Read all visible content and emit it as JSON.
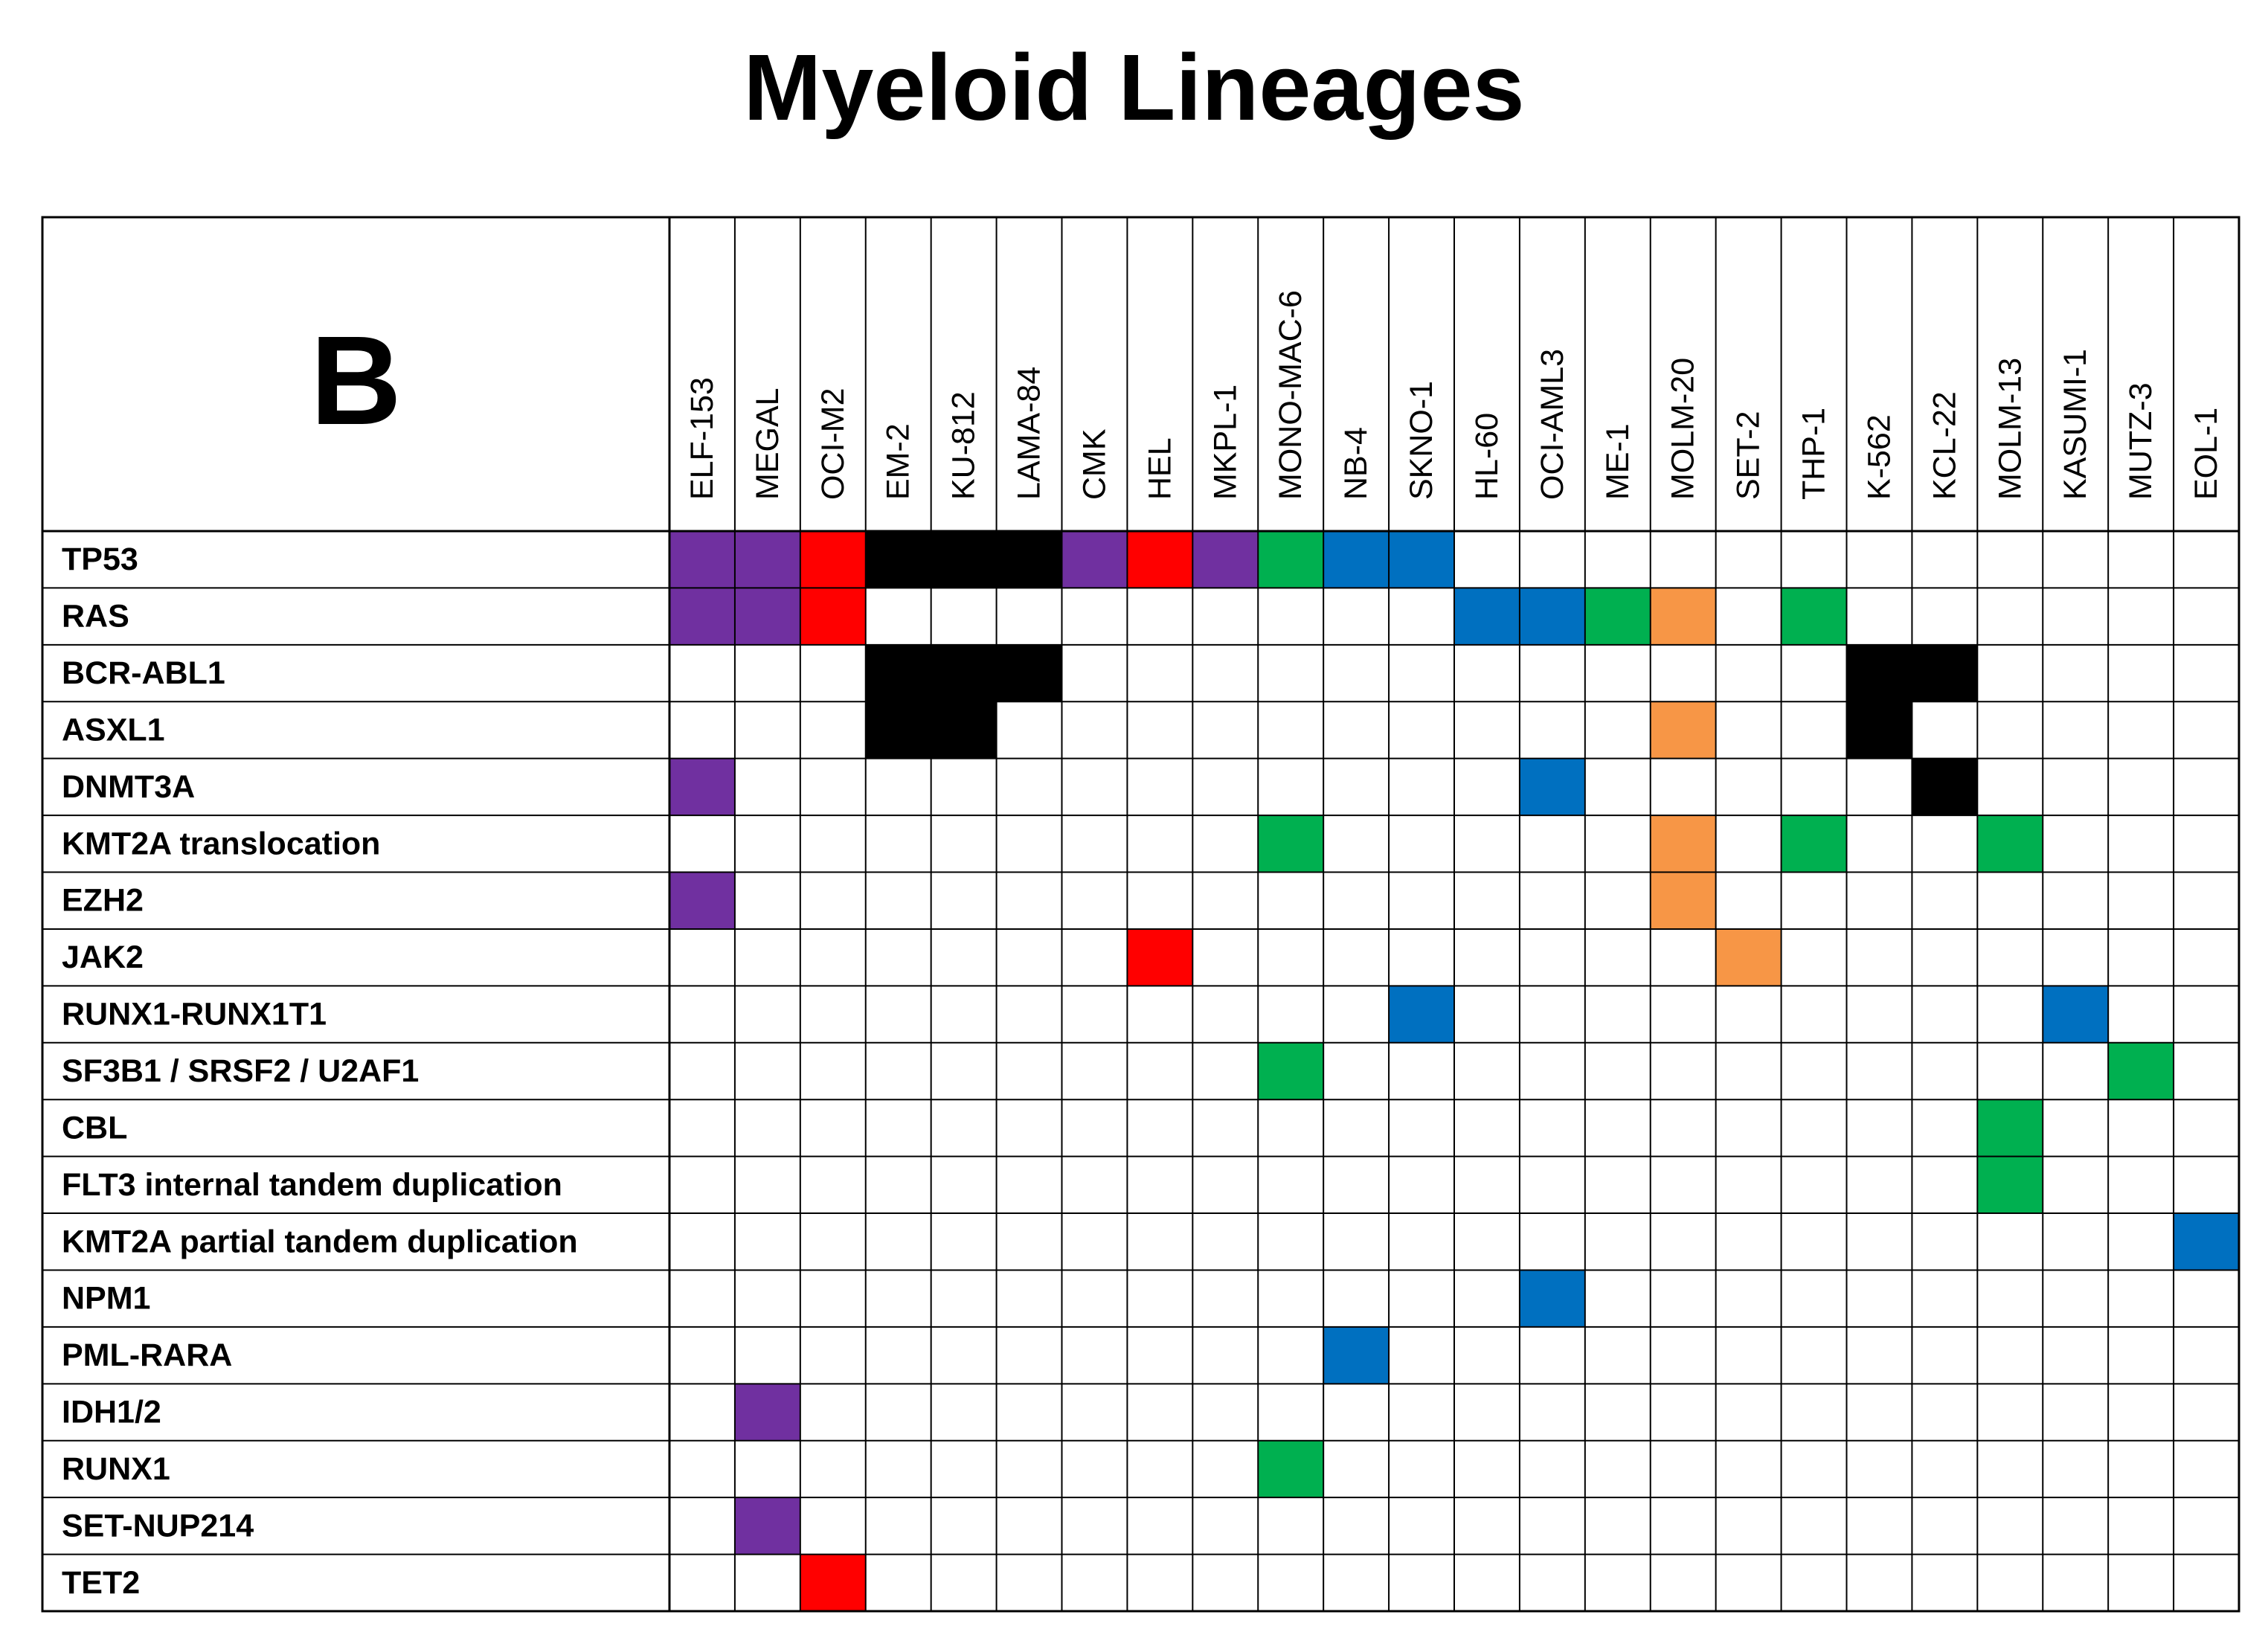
{
  "title": "Myeloid Lineages",
  "panel_label": "B",
  "colors": {
    "purple": "#7030a0",
    "red": "#ff0000",
    "black": "#000000",
    "green": "#00b050",
    "blue": "#0070c0",
    "orange": "#f79646"
  },
  "chart_data": {
    "type": "heatmap",
    "columns": [
      "ELF-153",
      "MEGAL",
      "OCI-M2",
      "EM-2",
      "KU-812",
      "LAMA-84",
      "CMK",
      "HEL",
      "MKPL-1",
      "MONO-MAC-6",
      "NB-4",
      "SKNO-1",
      "HL-60",
      "OCI-AML3",
      "ME-1",
      "MOLM-20",
      "SET-2",
      "THP-1",
      "K-562",
      "KCL-22",
      "MOLM-13",
      "KASUMI-1",
      "MUTZ-3",
      "EOL-1"
    ],
    "rows": [
      "TP53",
      "RAS",
      "BCR-ABL1",
      "ASXL1",
      "DNMT3A",
      "KMT2A translocation",
      "EZH2",
      "JAK2",
      "RUNX1-RUNX1T1",
      "SF3B1 / SRSF2 / U2AF1",
      "CBL",
      "FLT3 internal tandem duplication",
      "KMT2A partial tandem duplication",
      "NPM1",
      "PML-RARA",
      "IDH1/2",
      "RUNX1",
      "SET-NUP214",
      "TET2"
    ],
    "cells": [
      {
        "row": "TP53",
        "col": "ELF-153",
        "color": "purple"
      },
      {
        "row": "TP53",
        "col": "MEGAL",
        "color": "purple"
      },
      {
        "row": "TP53",
        "col": "OCI-M2",
        "color": "red"
      },
      {
        "row": "TP53",
        "col": "EM-2",
        "color": "black"
      },
      {
        "row": "TP53",
        "col": "KU-812",
        "color": "black"
      },
      {
        "row": "TP53",
        "col": "LAMA-84",
        "color": "black"
      },
      {
        "row": "TP53",
        "col": "CMK",
        "color": "purple"
      },
      {
        "row": "TP53",
        "col": "HEL",
        "color": "red"
      },
      {
        "row": "TP53",
        "col": "MKPL-1",
        "color": "purple"
      },
      {
        "row": "TP53",
        "col": "MONO-MAC-6",
        "color": "green"
      },
      {
        "row": "TP53",
        "col": "NB-4",
        "color": "blue"
      },
      {
        "row": "TP53",
        "col": "SKNO-1",
        "color": "blue"
      },
      {
        "row": "RAS",
        "col": "ELF-153",
        "color": "purple"
      },
      {
        "row": "RAS",
        "col": "MEGAL",
        "color": "purple"
      },
      {
        "row": "RAS",
        "col": "OCI-M2",
        "color": "red"
      },
      {
        "row": "RAS",
        "col": "HL-60",
        "color": "blue"
      },
      {
        "row": "RAS",
        "col": "OCI-AML3",
        "color": "blue"
      },
      {
        "row": "RAS",
        "col": "ME-1",
        "color": "green"
      },
      {
        "row": "RAS",
        "col": "MOLM-20",
        "color": "orange"
      },
      {
        "row": "RAS",
        "col": "THP-1",
        "color": "green"
      },
      {
        "row": "BCR-ABL1",
        "col": "EM-2",
        "color": "black"
      },
      {
        "row": "BCR-ABL1",
        "col": "KU-812",
        "color": "black"
      },
      {
        "row": "BCR-ABL1",
        "col": "LAMA-84",
        "color": "black"
      },
      {
        "row": "BCR-ABL1",
        "col": "K-562",
        "color": "black"
      },
      {
        "row": "BCR-ABL1",
        "col": "KCL-22",
        "color": "black"
      },
      {
        "row": "ASXL1",
        "col": "EM-2",
        "color": "black"
      },
      {
        "row": "ASXL1",
        "col": "KU-812",
        "color": "black"
      },
      {
        "row": "ASXL1",
        "col": "MOLM-20",
        "color": "orange"
      },
      {
        "row": "ASXL1",
        "col": "K-562",
        "color": "black"
      },
      {
        "row": "DNMT3A",
        "col": "ELF-153",
        "color": "purple"
      },
      {
        "row": "DNMT3A",
        "col": "OCI-AML3",
        "color": "blue"
      },
      {
        "row": "DNMT3A",
        "col": "KCL-22",
        "color": "black"
      },
      {
        "row": "KMT2A translocation",
        "col": "MONO-MAC-6",
        "color": "green"
      },
      {
        "row": "KMT2A translocation",
        "col": "MOLM-20",
        "color": "orange"
      },
      {
        "row": "KMT2A translocation",
        "col": "THP-1",
        "color": "green"
      },
      {
        "row": "KMT2A translocation",
        "col": "MOLM-13",
        "color": "green"
      },
      {
        "row": "EZH2",
        "col": "ELF-153",
        "color": "purple"
      },
      {
        "row": "EZH2",
        "col": "MOLM-20",
        "color": "orange"
      },
      {
        "row": "JAK2",
        "col": "HEL",
        "color": "red"
      },
      {
        "row": "JAK2",
        "col": "SET-2",
        "color": "orange"
      },
      {
        "row": "RUNX1-RUNX1T1",
        "col": "SKNO-1",
        "color": "blue"
      },
      {
        "row": "RUNX1-RUNX1T1",
        "col": "KASUMI-1",
        "color": "blue"
      },
      {
        "row": "SF3B1 / SRSF2 / U2AF1",
        "col": "MONO-MAC-6",
        "color": "green"
      },
      {
        "row": "SF3B1 / SRSF2 / U2AF1",
        "col": "MUTZ-3",
        "color": "green"
      },
      {
        "row": "CBL",
        "col": "MOLM-13",
        "color": "green"
      },
      {
        "row": "FLT3 internal tandem duplication",
        "col": "MOLM-13",
        "color": "green"
      },
      {
        "row": "KMT2A partial tandem duplication",
        "col": "EOL-1",
        "color": "blue"
      },
      {
        "row": "NPM1",
        "col": "OCI-AML3",
        "color": "blue"
      },
      {
        "row": "PML-RARA",
        "col": "NB-4",
        "color": "blue"
      },
      {
        "row": "IDH1/2",
        "col": "MEGAL",
        "color": "purple"
      },
      {
        "row": "RUNX1",
        "col": "MONO-MAC-6",
        "color": "green"
      },
      {
        "row": "SET-NUP214",
        "col": "MEGAL",
        "color": "purple"
      },
      {
        "row": "TET2",
        "col": "OCI-M2",
        "color": "red"
      }
    ]
  }
}
